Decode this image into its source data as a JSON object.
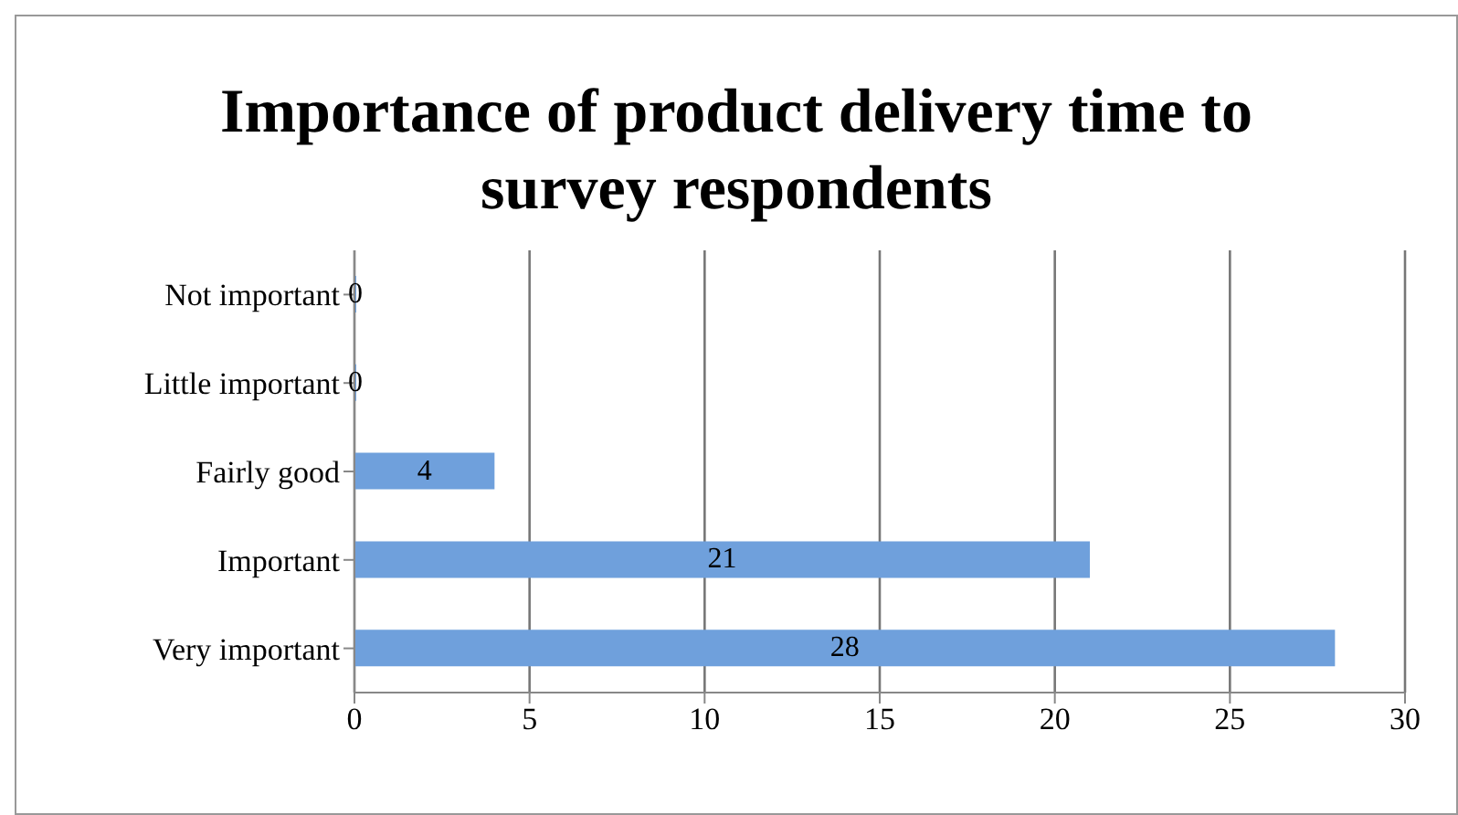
{
  "chart_data": {
    "type": "bar",
    "orientation": "horizontal",
    "title": "Importance of product delivery time to survey respondents",
    "categories": [
      "Not important",
      "Little important",
      "Fairly good",
      "Important",
      "Very important"
    ],
    "values": [
      0,
      0,
      4,
      21,
      28
    ],
    "color": "#6fa0dc",
    "xlim": [
      0,
      30
    ],
    "xticks": [
      0,
      5,
      10,
      15,
      20,
      25,
      30
    ],
    "grid": "x",
    "data_labels": true
  }
}
